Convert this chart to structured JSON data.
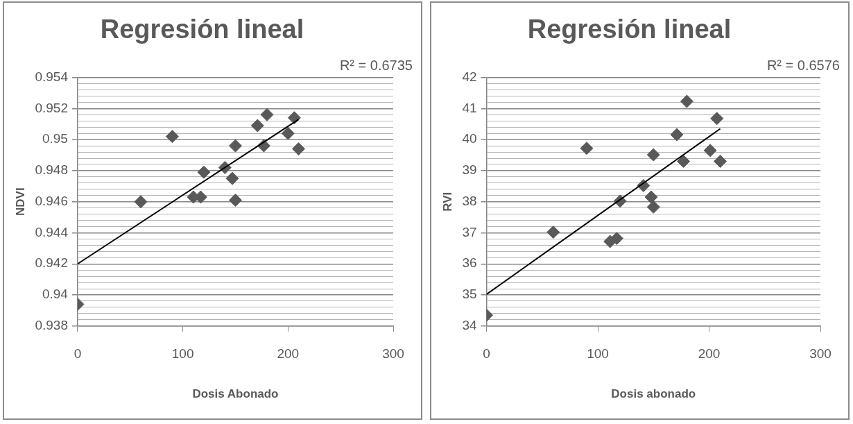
{
  "chart_data": [
    {
      "type": "scatter",
      "title": "Regresión lineal",
      "xlabel": "Dosis Abonado",
      "ylabel": "NDVI",
      "annotations": [
        "R² = 0.6735"
      ],
      "marker": "diamond",
      "grid": "y",
      "xlim": [
        0,
        300
      ],
      "xticks": [
        0,
        100,
        200,
        300
      ],
      "ylim": [
        0.938,
        0.954
      ],
      "yticks": [
        0.938,
        {
          "value": 0.9384,
          "label": null
        },
        {
          "value": 0.9388,
          "label": null
        },
        {
          "value": 0.9392,
          "label": null
        },
        {
          "value": 0.9396,
          "label": null
        },
        0.94,
        {
          "value": 0.9404,
          "label": null
        },
        {
          "value": 0.9408,
          "label": null
        },
        {
          "value": 0.9412,
          "label": null
        },
        {
          "value": 0.9416,
          "label": null
        },
        0.942,
        {
          "value": 0.9424,
          "label": null
        },
        {
          "value": 0.9428,
          "label": null
        },
        {
          "value": 0.9432,
          "label": null
        },
        {
          "value": 0.9436,
          "label": null
        },
        0.944,
        {
          "value": 0.9444,
          "label": null
        },
        {
          "value": 0.9448,
          "label": null
        },
        {
          "value": 0.9452,
          "label": null
        },
        {
          "value": 0.9456,
          "label": null
        },
        0.946,
        {
          "value": 0.9464,
          "label": null
        },
        {
          "value": 0.9468,
          "label": null
        },
        {
          "value": 0.9472,
          "label": null
        },
        {
          "value": 0.9476,
          "label": null
        },
        0.948,
        {
          "value": 0.9484,
          "label": null
        },
        {
          "value": 0.9488,
          "label": null
        },
        {
          "value": 0.9492,
          "label": null
        },
        {
          "value": 0.9496,
          "label": null
        },
        0.95,
        {
          "value": 0.9504,
          "label": null
        },
        {
          "value": 0.9508,
          "label": null
        },
        {
          "value": 0.9512,
          "label": null
        },
        {
          "value": 0.9516,
          "label": null
        },
        0.952,
        {
          "value": 0.9524,
          "label": null
        },
        {
          "value": 0.9528,
          "label": null
        },
        {
          "value": 0.9532,
          "label": null
        },
        {
          "value": 0.9536,
          "label": null
        },
        0.954
      ],
      "series": [
        {
          "color": "#595959",
          "x": [
            0,
            60,
            90,
            110,
            117,
            120,
            140,
            147,
            150,
            150,
            171,
            177,
            180,
            200,
            206,
            210
          ],
          "values": [
            0.9394,
            0.946,
            0.9502,
            0.9463,
            0.9463,
            0.9479,
            0.9482,
            0.9475,
            0.9496,
            0.9461,
            0.9509,
            0.9496,
            0.9516,
            0.9504,
            0.9514,
            0.9494
          ]
        },
        {
          "type": "line",
          "color": "#000000",
          "marker": "none",
          "x": [
            0,
            210
          ],
          "values": [
            0.942,
            0.9513
          ]
        }
      ]
    },
    {
      "type": "scatter",
      "title": "Regresión lineal",
      "xlabel": "Dosis abonado",
      "ylabel": "RVI",
      "annotations": [
        "R² = 0.6576"
      ],
      "marker": "diamond",
      "grid": "y",
      "xlim": [
        0,
        300
      ],
      "xticks": [
        0,
        100,
        200,
        300
      ],
      "ylim": [
        34,
        42
      ],
      "yticks": [
        34,
        {
          "value": 34.2,
          "label": null
        },
        {
          "value": 34.4,
          "label": null
        },
        {
          "value": 34.6,
          "label": null
        },
        {
          "value": 34.8,
          "label": null
        },
        35,
        {
          "value": 35.2,
          "label": null
        },
        {
          "value": 35.4,
          "label": null
        },
        {
          "value": 35.6,
          "label": null
        },
        {
          "value": 35.8,
          "label": null
        },
        36,
        {
          "value": 36.2,
          "label": null
        },
        {
          "value": 36.4,
          "label": null
        },
        {
          "value": 36.6,
          "label": null
        },
        {
          "value": 36.8,
          "label": null
        },
        37,
        {
          "value": 37.2,
          "label": null
        },
        {
          "value": 37.4,
          "label": null
        },
        {
          "value": 37.6,
          "label": null
        },
        {
          "value": 37.8,
          "label": null
        },
        38,
        {
          "value": 38.2,
          "label": null
        },
        {
          "value": 38.4,
          "label": null
        },
        {
          "value": 38.6,
          "label": null
        },
        {
          "value": 38.8,
          "label": null
        },
        39,
        {
          "value": 39.2,
          "label": null
        },
        {
          "value": 39.4,
          "label": null
        },
        {
          "value": 39.6,
          "label": null
        },
        {
          "value": 39.8,
          "label": null
        },
        40,
        {
          "value": 40.2,
          "label": null
        },
        {
          "value": 40.4,
          "label": null
        },
        {
          "value": 40.6,
          "label": null
        },
        {
          "value": 40.8,
          "label": null
        },
        41,
        {
          "value": 41.2,
          "label": null
        },
        {
          "value": 41.4,
          "label": null
        },
        {
          "value": 41.6,
          "label": null
        },
        {
          "value": 41.8,
          "label": null
        },
        42
      ],
      "series": [
        {
          "color": "#595959",
          "x": [
            0,
            60,
            90,
            111,
            117,
            120,
            141,
            148,
            150,
            150,
            171,
            177,
            180,
            201,
            207,
            210
          ],
          "values": [
            34.35,
            37.02,
            39.72,
            36.72,
            36.82,
            38.02,
            38.52,
            38.15,
            37.83,
            39.51,
            40.16,
            39.3,
            41.23,
            39.65,
            40.68,
            39.3
          ]
        },
        {
          "type": "line",
          "color": "#000000",
          "marker": "none",
          "x": [
            0,
            210
          ],
          "values": [
            35.02,
            40.35
          ]
        }
      ]
    }
  ]
}
